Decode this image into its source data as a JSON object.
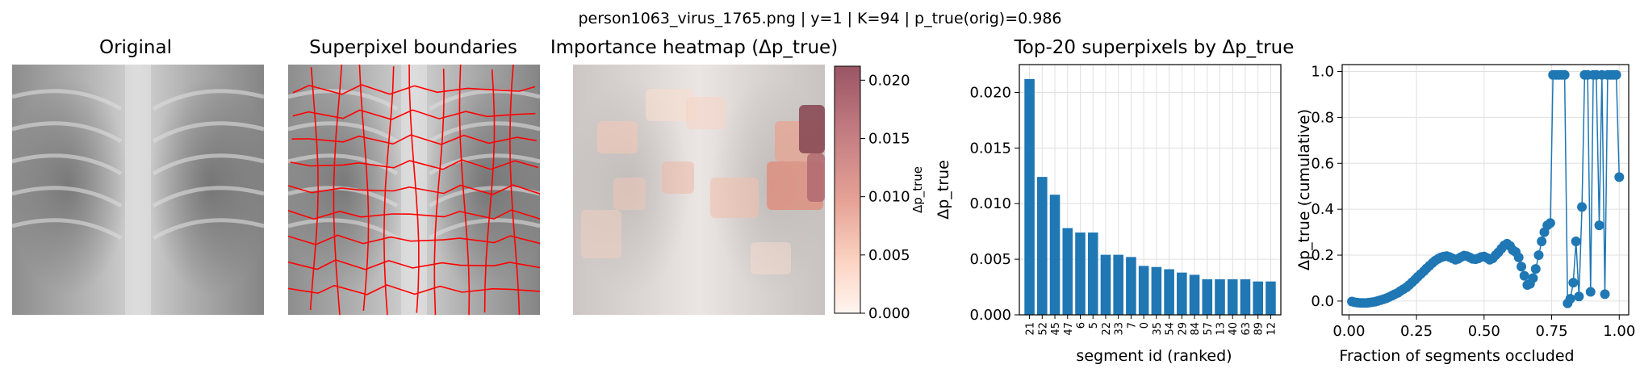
{
  "suptitle": "person1063_virus_1765.png | y=1 | K=94 | p_true(orig)=0.986",
  "panels": {
    "original": {
      "title": "Original"
    },
    "superpixels": {
      "title": "Superpixel boundaries"
    },
    "heatmap": {
      "title": "Importance heatmap (Δp_true)",
      "colorbar_label": "Δp_true",
      "colorbar_ticks": [
        "0.000",
        "0.005",
        "0.010",
        "0.015",
        "0.020"
      ]
    }
  },
  "colors": {
    "bar": "#1f77b4",
    "line": "#1f77b4",
    "boundary": "#ff0000",
    "heat_low": "#fff5f0",
    "heat_high": "#67000d"
  },
  "chart_data": [
    {
      "type": "bar",
      "title": "Top-20 superpixels by Δp_true",
      "xlabel": "segment id (ranked)",
      "ylabel": "Δp_true",
      "categories": [
        "21",
        "52",
        "45",
        "47",
        "6",
        "5",
        "22",
        "33",
        "7",
        "0",
        "35",
        "54",
        "29",
        "84",
        "57",
        "13",
        "40",
        "63",
        "89",
        "12"
      ],
      "values": [
        0.0212,
        0.0124,
        0.0108,
        0.0078,
        0.0074,
        0.0074,
        0.0054,
        0.0054,
        0.0052,
        0.0044,
        0.0043,
        0.0041,
        0.0038,
        0.0036,
        0.0032,
        0.0032,
        0.0032,
        0.0032,
        0.003,
        0.003
      ],
      "ylim": [
        0,
        0.0225
      ],
      "yticks": [
        "0.000",
        "0.005",
        "0.010",
        "0.015",
        "0.020"
      ],
      "grid": true
    },
    {
      "type": "line",
      "xlabel": "Fraction of segments occluded",
      "ylabel": "Δp_true (cumulative)",
      "xlim": [
        -0.025,
        1.035
      ],
      "ylim": [
        -0.06,
        1.03
      ],
      "xticks": [
        "0.00",
        "0.25",
        "0.50",
        "0.75",
        "1.00"
      ],
      "yticks": [
        "0.0",
        "0.2",
        "0.4",
        "0.6",
        "0.8",
        "1.0"
      ],
      "grid": true,
      "x": [
        0.011,
        0.021,
        0.032,
        0.043,
        0.053,
        0.064,
        0.074,
        0.085,
        0.096,
        0.106,
        0.117,
        0.128,
        0.138,
        0.149,
        0.16,
        0.17,
        0.181,
        0.191,
        0.202,
        0.213,
        0.223,
        0.234,
        0.245,
        0.255,
        0.266,
        0.277,
        0.287,
        0.298,
        0.309,
        0.319,
        0.33,
        0.34,
        0.351,
        0.362,
        0.372,
        0.383,
        0.394,
        0.404,
        0.415,
        0.426,
        0.436,
        0.447,
        0.457,
        0.468,
        0.479,
        0.489,
        0.5,
        0.511,
        0.521,
        0.532,
        0.543,
        0.553,
        0.564,
        0.574,
        0.585,
        0.596,
        0.606,
        0.617,
        0.628,
        0.638,
        0.649,
        0.66,
        0.67,
        0.681,
        0.691,
        0.702,
        0.713,
        0.723,
        0.734,
        0.745,
        0.755,
        0.766,
        0.777,
        0.787,
        0.798,
        0.809,
        0.819,
        0.83,
        0.84,
        0.851,
        0.862,
        0.872,
        0.883,
        0.894,
        0.904,
        0.915,
        0.926,
        0.936,
        0.947,
        0.957,
        0.968,
        0.979,
        0.989,
        1.0
      ],
      "y": [
        -0.002,
        -0.005,
        -0.007,
        -0.008,
        -0.008,
        -0.008,
        -0.007,
        -0.005,
        -0.003,
        0.0,
        0.004,
        0.008,
        0.012,
        0.018,
        0.024,
        0.03,
        0.036,
        0.044,
        0.052,
        0.06,
        0.07,
        0.082,
        0.094,
        0.106,
        0.118,
        0.13,
        0.142,
        0.154,
        0.166,
        0.176,
        0.184,
        0.19,
        0.194,
        0.196,
        0.192,
        0.186,
        0.18,
        0.184,
        0.192,
        0.198,
        0.196,
        0.19,
        0.184,
        0.182,
        0.186,
        0.192,
        0.194,
        0.188,
        0.18,
        0.186,
        0.2,
        0.212,
        0.228,
        0.242,
        0.25,
        0.24,
        0.222,
        0.214,
        0.19,
        0.15,
        0.11,
        0.07,
        0.075,
        0.1,
        0.14,
        0.2,
        0.26,
        0.3,
        0.33,
        0.34,
        0.985,
        0.985,
        0.985,
        0.985,
        0.985,
        -0.01,
        0.01,
        0.08,
        0.26,
        0.02,
        0.41,
        0.985,
        0.985,
        0.04,
        0.985,
        0.985,
        0.33,
        0.985,
        0.03,
        0.985,
        0.985,
        0.985,
        0.985,
        0.54
      ]
    }
  ]
}
